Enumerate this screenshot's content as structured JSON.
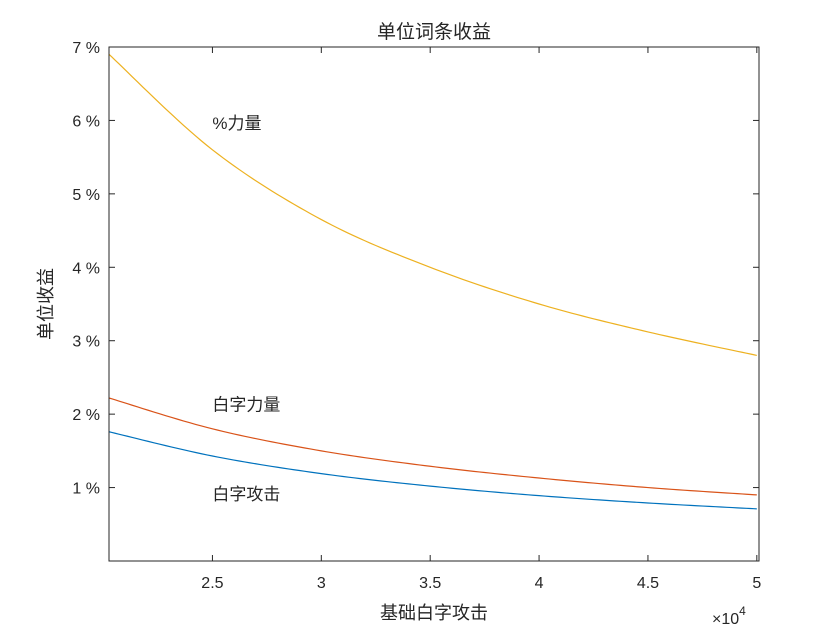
{
  "chart_data": {
    "type": "line",
    "title": "单位词条收益",
    "xlabel": "基础白字攻击",
    "ylabel": "单位收益",
    "x_exponent_label": "×10",
    "x_exponent_power": "4",
    "xlim": [
      20250,
      50100
    ],
    "ylim": [
      0,
      7
    ],
    "x_ticks": [
      25000,
      30000,
      35000,
      40000,
      45000,
      50000
    ],
    "x_tick_labels": [
      "2.5",
      "3",
      "3.5",
      "4",
      "4.5",
      "5"
    ],
    "y_ticks": [
      1,
      2,
      3,
      4,
      5,
      6,
      7
    ],
    "y_tick_labels": [
      "1 %",
      "2 %",
      "3 %",
      "4 %",
      "5 %",
      "6 %",
      "7 %"
    ],
    "grid": false,
    "series": [
      {
        "name": "%力量",
        "color": "#EDB120",
        "x": [
          20250,
          25000,
          30000,
          35000,
          40000,
          45000,
          50000
        ],
        "y": [
          6.9,
          5.6,
          4.65,
          4.0,
          3.5,
          3.12,
          2.8
        ]
      },
      {
        "name": "白字力量",
        "color": "#D95319",
        "x": [
          20250,
          25000,
          30000,
          35000,
          40000,
          45000,
          50000
        ],
        "y": [
          2.22,
          1.8,
          1.5,
          1.29,
          1.13,
          1.0,
          0.9
        ]
      },
      {
        "name": "白字攻击",
        "color": "#0072BD",
        "x": [
          20250,
          25000,
          30000,
          35000,
          40000,
          45000,
          50000
        ],
        "y": [
          1.76,
          1.43,
          1.19,
          1.02,
          0.89,
          0.79,
          0.71
        ]
      }
    ],
    "annotations": [
      {
        "text": "%力量",
        "x": 25000,
        "y": 5.88
      },
      {
        "text": "白字力量",
        "x": 25000,
        "y": 2.05
      },
      {
        "text": "白字攻击",
        "x": 25000,
        "y": 0.83
      }
    ]
  }
}
